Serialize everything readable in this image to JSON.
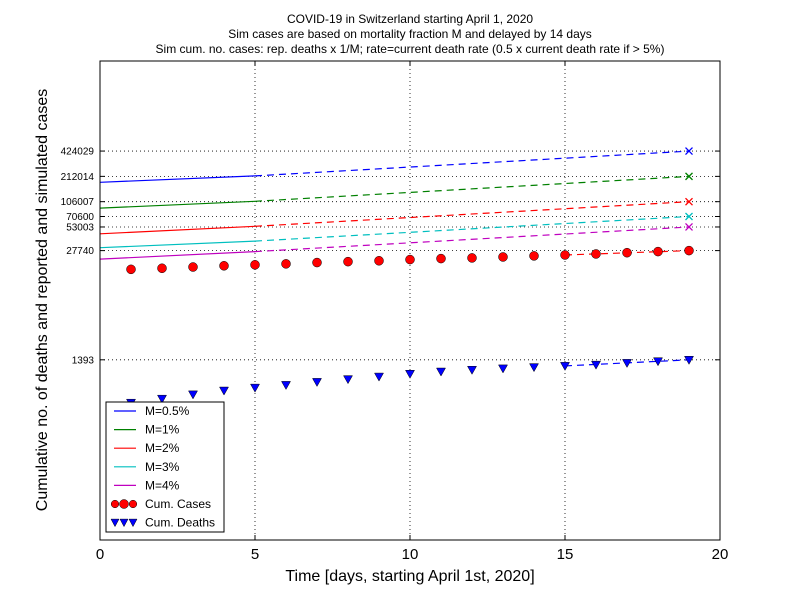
{
  "chart_data": {
    "type": "line",
    "title_lines": [
      "COVID-19 in Switzerland starting April 1, 2020",
      "Sim cases are based on mortality fraction M and delayed by 14 days",
      "Sim cum. no. cases: rep. deaths x 1/M; rate=current death rate (0.5 x current death rate if > 5%)"
    ],
    "xlabel": "Time [days, starting April 1st, 2020]",
    "ylabel": "Cumulative no. of deaths and reported and simulated cases",
    "xlim": [
      0,
      20
    ],
    "ylim": [
      10,
      5000000
    ],
    "yscale": "log",
    "x_ticks": [
      "0",
      "5",
      "10",
      "15",
      "20"
    ],
    "y_ticks": [
      "424029",
      "212014",
      "106007",
      "70600",
      "53003",
      "27740",
      "1393"
    ],
    "grid": "dotted",
    "legend_position": "lower-left",
    "series": [
      {
        "name": "M=0.5%",
        "color": "#0000ff",
        "solid": {
          "x": [
            0,
            5
          ],
          "y": [
            180000,
            215000
          ]
        },
        "dashed": {
          "x": [
            5,
            19
          ],
          "y": [
            215000,
            424029
          ]
        },
        "end_marker": {
          "x": 19,
          "y": 424029
        }
      },
      {
        "name": "M=1%",
        "color": "#008000",
        "solid": {
          "x": [
            0,
            5
          ],
          "y": [
            89000,
            107000
          ]
        },
        "dashed": {
          "x": [
            5,
            19
          ],
          "y": [
            107000,
            212014
          ]
        },
        "end_marker": {
          "x": 19,
          "y": 212014
        }
      },
      {
        "name": "M=2%",
        "color": "#ff0000",
        "solid": {
          "x": [
            0,
            5
          ],
          "y": [
            44000,
            54000
          ]
        },
        "dashed": {
          "x": [
            5,
            19
          ],
          "y": [
            54000,
            106007
          ]
        },
        "end_marker": {
          "x": 19,
          "y": 106007
        }
      },
      {
        "name": "M=3%",
        "color": "#00bfbf",
        "solid": {
          "x": [
            0,
            5
          ],
          "y": [
            30000,
            36000
          ]
        },
        "dashed": {
          "x": [
            5,
            19
          ],
          "y": [
            36000,
            70600
          ]
        },
        "end_marker": {
          "x": 19,
          "y": 70600
        }
      },
      {
        "name": "M=4%",
        "color": "#bf00bf",
        "solid": {
          "x": [
            0,
            5
          ],
          "y": [
            22000,
            27000
          ]
        },
        "dashed": {
          "x": [
            5,
            19
          ],
          "y": [
            27000,
            53003
          ]
        },
        "end_marker": {
          "x": 19,
          "y": 53003
        }
      }
    ],
    "scatter_series": [
      {
        "name": "Cum. Cases",
        "color": "#ff0000",
        "edge": "#000000",
        "marker": "circle",
        "x": [
          1,
          2,
          3,
          4,
          5,
          6,
          7,
          8,
          9,
          10,
          11,
          12,
          13,
          14,
          15,
          16,
          17,
          18,
          19
        ],
        "y": [
          16600,
          17100,
          17700,
          18300,
          18800,
          19300,
          20000,
          20500,
          21000,
          21700,
          22300,
          22700,
          23300,
          24000,
          24600,
          25300,
          26200,
          27000,
          27740
        ],
        "fit": {
          "x": [
            15,
            19
          ],
          "y": [
            24600,
            27740
          ]
        }
      },
      {
        "name": "Cum. Deaths",
        "color": "#0000ff",
        "edge": "#000000",
        "marker": "triangle-down",
        "x": [
          1,
          2,
          3,
          4,
          5,
          6,
          7,
          8,
          9,
          10,
          11,
          12,
          13,
          14,
          15,
          16,
          17,
          18,
          19
        ],
        "y": [
          430,
          480,
          540,
          600,
          650,
          700,
          760,
          820,
          880,
          950,
          1010,
          1060,
          1100,
          1140,
          1180,
          1220,
          1280,
          1340,
          1393
        ],
        "fit": {
          "x": [
            15,
            19
          ],
          "y": [
            1180,
            1393
          ]
        }
      }
    ]
  }
}
